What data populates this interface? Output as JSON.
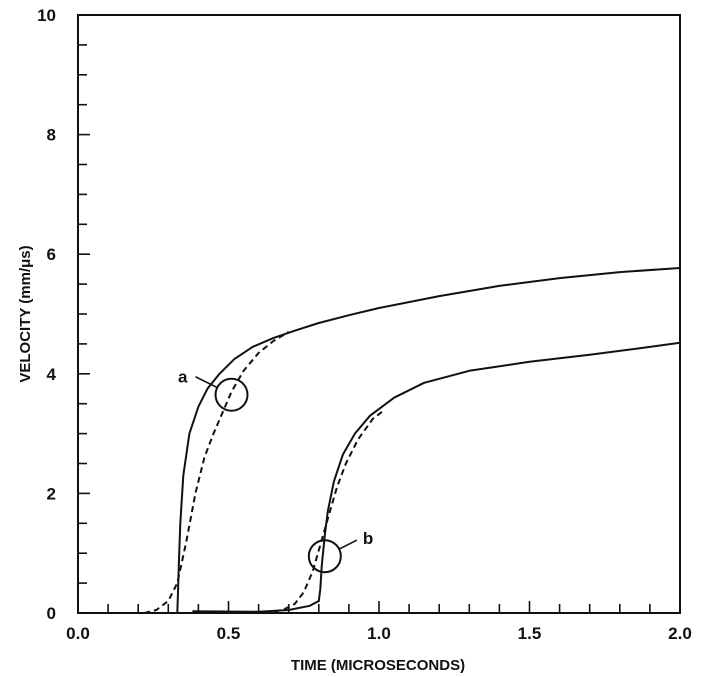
{
  "chart_data": {
    "type": "line",
    "title": "",
    "xlabel": "TIME (MICROSECONDS)",
    "ylabel": "VELOCITY (mm/μs)",
    "xlim": [
      0.0,
      2.0
    ],
    "ylim": [
      0,
      10
    ],
    "x_tick_labels": [
      "0.0",
      "0.5",
      "1.0",
      "1.5",
      "2.0"
    ],
    "y_tick_labels": [
      "0",
      "2",
      "4",
      "6",
      "8",
      "10"
    ],
    "grid": false,
    "legend": "none",
    "series": [
      {
        "style": "solid",
        "x": [
          0.33,
          0.332,
          0.335,
          0.34,
          0.35,
          0.37,
          0.4,
          0.43,
          0.47,
          0.52,
          0.58,
          0.65,
          0.72,
          0.8,
          0.9,
          1.0,
          1.2,
          1.4,
          1.6,
          1.8,
          2.0
        ],
        "y": [
          0.0,
          0.3,
          0.8,
          1.5,
          2.3,
          3.0,
          3.45,
          3.75,
          4.0,
          4.25,
          4.45,
          4.6,
          4.72,
          4.85,
          4.98,
          5.1,
          5.3,
          5.47,
          5.6,
          5.7,
          5.77
        ]
      },
      {
        "style": "dashed",
        "x": [
          0.22,
          0.26,
          0.3,
          0.33,
          0.36,
          0.39,
          0.42,
          0.45,
          0.48,
          0.51,
          0.55,
          0.6,
          0.65,
          0.7
        ],
        "y": [
          0.0,
          0.05,
          0.2,
          0.5,
          1.2,
          2.0,
          2.6,
          3.0,
          3.35,
          3.7,
          4.05,
          4.35,
          4.55,
          4.7
        ]
      },
      {
        "style": "solid",
        "x": [
          0.38,
          0.6,
          0.7,
          0.77,
          0.8,
          0.805,
          0.81,
          0.82,
          0.83,
          0.85,
          0.88,
          0.92,
          0.97,
          1.05,
          1.15,
          1.3,
          1.5,
          1.7,
          1.9,
          2.0
        ],
        "y": [
          0.03,
          0.02,
          0.05,
          0.12,
          0.2,
          0.4,
          0.8,
          1.3,
          1.7,
          2.2,
          2.65,
          3.0,
          3.3,
          3.6,
          3.85,
          4.05,
          4.2,
          4.32,
          4.45,
          4.52
        ]
      },
      {
        "style": "dashed",
        "x": [
          0.62,
          0.68,
          0.72,
          0.75,
          0.78,
          0.8,
          0.82,
          0.84,
          0.86,
          0.89,
          0.93,
          0.98,
          1.02
        ],
        "y": [
          0.0,
          0.05,
          0.15,
          0.35,
          0.7,
          1.05,
          1.4,
          1.75,
          2.1,
          2.5,
          2.9,
          3.25,
          3.4
        ]
      }
    ],
    "annotations": [
      {
        "text": "a",
        "x": 0.51,
        "y": 3.65
      },
      {
        "text": "b",
        "x": 0.82,
        "y": 0.95
      }
    ]
  }
}
